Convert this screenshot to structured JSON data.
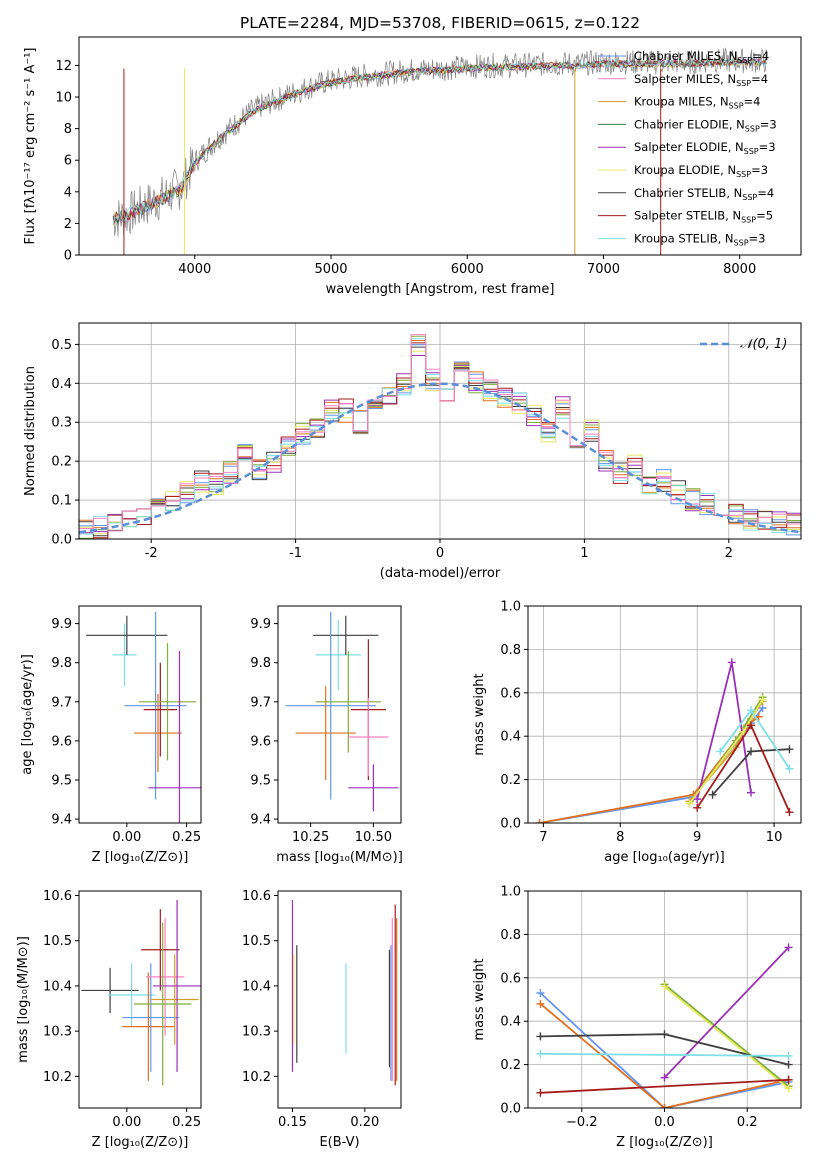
{
  "chart_data": [
    {
      "type": "line",
      "title": "PLATE=2284, MJD=53708, FIBERID=0615, z=0.122",
      "xlabel": "wavelength [Angstrom, rest frame]",
      "ylabel": "Flux [fλ10⁻¹⁷ erg cm⁻² s⁻¹ A⁻¹]",
      "xlim": [
        3150,
        8450
      ],
      "ylim": [
        0,
        13.8
      ],
      "xticks": [
        4000,
        5000,
        6000,
        7000,
        8000
      ],
      "yticks": [
        0,
        2,
        4,
        6,
        8,
        10,
        12
      ],
      "legend_position": "upper-right",
      "observed": {
        "color": "#808080",
        "x": [
          3400,
          3500,
          3600,
          3700,
          3800,
          3900,
          4000,
          4100,
          4200,
          4300,
          4400,
          4500,
          4600,
          4700,
          4800,
          4900,
          5000,
          5200,
          5400,
          5600,
          5800,
          6000,
          6200,
          6400,
          6600,
          6800,
          7000,
          7200,
          7400,
          7600,
          7800,
          8000,
          8200
        ],
        "y": [
          2.3,
          2.5,
          3.0,
          3.4,
          3.8,
          4.3,
          5.9,
          6.8,
          7.6,
          8.3,
          9.0,
          9.5,
          9.8,
          10.2,
          10.5,
          10.8,
          11.0,
          11.3,
          11.5,
          11.7,
          11.8,
          11.9,
          12.0,
          12.0,
          12.1,
          12.1,
          12.2,
          12.2,
          12.2,
          12.2,
          12.3,
          12.3,
          12.3
        ]
      },
      "series": [
        {
          "name": "Chabrier MILES, N_SSP=4",
          "color": "#6495ed"
        },
        {
          "name": "Salpeter MILES, N_SSP=4",
          "color": "#ff80c0"
        },
        {
          "name": "Kroupa MILES, N_SSP=4",
          "color": "#d2a02a"
        },
        {
          "name": "Chabrier ELODIE, N_SSP=3",
          "color": "#3a7d44"
        },
        {
          "name": "Salpeter ELODIE, N_SSP=3",
          "color": "#9b30b8"
        },
        {
          "name": "Kroupa ELODIE, N_SSP=3",
          "color": "#e8e860"
        },
        {
          "name": "Chabrier STELIB, N_SSP=4",
          "color": "#404040"
        },
        {
          "name": "Salpeter STELIB, N_SSP=5",
          "color": "#a51c1c"
        },
        {
          "name": "Kroupa STELIB, N_SSP=3",
          "color": "#80dfe6"
        }
      ],
      "model_x": [
        3400,
        3500,
        3600,
        3700,
        3800,
        3900,
        4000,
        4100,
        4200,
        4300,
        4400,
        4500,
        4600,
        4700,
        4800,
        4900,
        5000,
        5200,
        5400,
        5600,
        5800,
        6000,
        6200,
        6400,
        6600,
        6800,
        7000,
        7200,
        7400,
        7600,
        7800,
        8000,
        8200
      ],
      "model_y": [
        2.3,
        2.5,
        2.9,
        3.3,
        3.7,
        4.2,
        5.8,
        6.7,
        7.5,
        8.2,
        8.9,
        9.4,
        9.7,
        10.1,
        10.4,
        10.7,
        10.9,
        11.2,
        11.4,
        11.6,
        11.7,
        11.8,
        11.9,
        11.9,
        12.0,
        12.0,
        12.1,
        12.1,
        12.1,
        12.1,
        12.2,
        12.2,
        12.2
      ]
    },
    {
      "type": "line",
      "xlabel": "(data-model)/error",
      "ylabel": "Normed distribution",
      "xlim": [
        -2.5,
        2.5
      ],
      "ylim": [
        0,
        0.555
      ],
      "xticks": [
        -2,
        -1,
        0,
        1,
        2
      ],
      "yticks": [
        0.0,
        0.1,
        0.2,
        0.3,
        0.4,
        0.5
      ],
      "grid": true,
      "legend": "N(0,1)",
      "legend_position": "top-right",
      "hist_x": [
        -2.5,
        -2.4,
        -2.3,
        -2.2,
        -2.1,
        -2.0,
        -1.9,
        -1.8,
        -1.7,
        -1.6,
        -1.5,
        -1.4,
        -1.3,
        -1.2,
        -1.1,
        -1.0,
        -0.9,
        -0.8,
        -0.7,
        -0.6,
        -0.5,
        -0.4,
        -0.3,
        -0.2,
        -0.1,
        0.0,
        0.1,
        0.2,
        0.3,
        0.4,
        0.5,
        0.6,
        0.7,
        0.8,
        0.9,
        1.0,
        1.1,
        1.2,
        1.3,
        1.4,
        1.5,
        1.6,
        1.7,
        1.8,
        1.9,
        2.0,
        2.1,
        2.2,
        2.3,
        2.4
      ],
      "hist_y": [
        0.02,
        0.03,
        0.04,
        0.05,
        0.06,
        0.08,
        0.1,
        0.12,
        0.15,
        0.14,
        0.17,
        0.22,
        0.18,
        0.2,
        0.24,
        0.27,
        0.29,
        0.33,
        0.33,
        0.3,
        0.36,
        0.37,
        0.4,
        0.5,
        0.41,
        0.38,
        0.43,
        0.4,
        0.38,
        0.36,
        0.35,
        0.32,
        0.27,
        0.34,
        0.23,
        0.28,
        0.2,
        0.17,
        0.19,
        0.13,
        0.15,
        0.12,
        0.1,
        0.09,
        0.07,
        0.06,
        0.05,
        0.05,
        0.04,
        0.04
      ]
    },
    {
      "type": "scatter",
      "xlabel": "Z [log₁₀(Z/Z⊙)]",
      "ylabel": "age  [log₁₀(age/yr)]",
      "xlim": [
        -0.2,
        0.31
      ],
      "ylim": [
        9.39,
        9.945
      ],
      "xticks": [
        0.0,
        0.25
      ],
      "xticklabels": [
        "0.00",
        "0.25"
      ],
      "yticks": [
        9.4,
        9.5,
        9.6,
        9.7,
        9.8,
        9.9
      ],
      "error_crosses": [
        {
          "x": -0.01,
          "y": 9.82,
          "xerr": 0.05,
          "yerr": 0.08,
          "color": "#80dfe6"
        },
        {
          "x": 0.0,
          "y": 9.87,
          "xerr": 0.17,
          "yerr": 0.05,
          "color": "#404040"
        },
        {
          "x": 0.12,
          "y": 9.69,
          "xerr": 0.13,
          "yerr": 0.24,
          "color": "#6495ed"
        },
        {
          "x": 0.13,
          "y": 9.62,
          "xerr": 0.1,
          "yerr": 0.1,
          "color": "#e07020"
        },
        {
          "x": 0.14,
          "y": 9.68,
          "xerr": 0.07,
          "yerr": 0.12,
          "color": "#a51c1c"
        },
        {
          "x": 0.17,
          "y": 9.7,
          "xerr": 0.12,
          "yerr": 0.15,
          "color": "#7fae3a"
        },
        {
          "x": 0.22,
          "y": 9.48,
          "xerr": 0.13,
          "yerr": 0.35,
          "color": "#9b30b8"
        }
      ]
    },
    {
      "type": "scatter",
      "xlabel": "mass [log₁₀(M/M⊙)]",
      "xlim": [
        10.12,
        10.61
      ],
      "ylim": [
        9.39,
        9.945
      ],
      "xticks": [
        10.25,
        10.5
      ],
      "xticklabels": [
        "10.25",
        "10.50"
      ],
      "yticks": [
        9.4,
        9.5,
        9.6,
        9.7,
        9.8,
        9.9
      ],
      "error_crosses": [
        {
          "x": 10.36,
          "y": 9.82,
          "xerr": 0.09,
          "yerr": 0.09,
          "color": "#80dfe6"
        },
        {
          "x": 10.39,
          "y": 9.87,
          "xerr": 0.13,
          "yerr": 0.05,
          "color": "#404040"
        },
        {
          "x": 10.33,
          "y": 9.69,
          "xerr": 0.18,
          "yerr": 0.24,
          "color": "#6495ed"
        },
        {
          "x": 10.31,
          "y": 9.62,
          "xerr": 0.12,
          "yerr": 0.12,
          "color": "#e07020"
        },
        {
          "x": 10.48,
          "y": 9.68,
          "xerr": 0.07,
          "yerr": 0.18,
          "color": "#a51c1c"
        },
        {
          "x": 10.4,
          "y": 9.7,
          "xerr": 0.13,
          "yerr": 0.13,
          "color": "#7fae3a"
        },
        {
          "x": 10.48,
          "y": 9.61,
          "xerr": 0.08,
          "yerr": 0.1,
          "color": "#ff80c0"
        },
        {
          "x": 10.5,
          "y": 9.48,
          "xerr": 0.1,
          "yerr": 0.06,
          "color": "#9b30b8"
        }
      ]
    },
    {
      "type": "line",
      "xlabel": "age  [log₁₀(age/yr)]",
      "ylabel": "mass weight",
      "xlim": [
        6.8,
        10.35
      ],
      "ylim": [
        0,
        1.0
      ],
      "xticks": [
        7,
        8,
        9,
        10
      ],
      "yticks": [
        0.0,
        0.2,
        0.4,
        0.6,
        0.8,
        1.0
      ],
      "grid": true,
      "series": [
        {
          "color": "#6495ed",
          "x": [
            6.95,
            8.95,
            9.7,
            9.85
          ],
          "y": [
            0.0,
            0.12,
            0.46,
            0.53
          ]
        },
        {
          "color": "#e07020",
          "x": [
            6.95,
            8.95,
            9.65,
            9.8
          ],
          "y": [
            0.0,
            0.13,
            0.45,
            0.49
          ]
        },
        {
          "color": "#d2a02a",
          "x": [
            8.9,
            9.5,
            9.7,
            9.85
          ],
          "y": [
            0.1,
            0.35,
            0.48,
            0.56
          ]
        },
        {
          "color": "#7fae3a",
          "x": [
            8.9,
            9.5,
            9.85
          ],
          "y": [
            0.09,
            0.38,
            0.58
          ]
        },
        {
          "color": "#9b30b8",
          "x": [
            9.0,
            9.45,
            9.7
          ],
          "y": [
            0.11,
            0.74,
            0.14
          ]
        },
        {
          "color": "#e8e860",
          "x": [
            8.9,
            9.6,
            9.85
          ],
          "y": [
            0.09,
            0.42,
            0.57
          ]
        },
        {
          "color": "#404040",
          "x": [
            9.2,
            9.7,
            10.2
          ],
          "y": [
            0.13,
            0.33,
            0.34
          ]
        },
        {
          "color": "#a51c1c",
          "x": [
            9.0,
            9.7,
            10.2
          ],
          "y": [
            0.07,
            0.45,
            0.05
          ]
        },
        {
          "color": "#80dfe6",
          "x": [
            9.3,
            9.7,
            10.2
          ],
          "y": [
            0.33,
            0.52,
            0.25
          ]
        }
      ]
    },
    {
      "type": "scatter",
      "xlabel": "Z [log₁₀(Z/Z⊙)]",
      "ylabel": "mass [log₁₀(M/M⊙)]",
      "xlim": [
        -0.2,
        0.31
      ],
      "ylim": [
        10.13,
        10.61
      ],
      "xticks": [
        0.0,
        0.25
      ],
      "xticklabels": [
        "0.00",
        "0.25"
      ],
      "yticks": [
        10.2,
        10.3,
        10.4,
        10.5,
        10.6
      ],
      "error_crosses": [
        {
          "x": -0.07,
          "y": 10.39,
          "xerr": 0.12,
          "yerr": 0.05,
          "color": "#404040"
        },
        {
          "x": 0.02,
          "y": 10.38,
          "xerr": 0.1,
          "yerr": 0.07,
          "color": "#80dfe6"
        },
        {
          "x": 0.1,
          "y": 10.33,
          "xerr": 0.12,
          "yerr": 0.12,
          "color": "#6495ed"
        },
        {
          "x": 0.09,
          "y": 10.31,
          "xerr": 0.11,
          "yerr": 0.12,
          "color": "#e07020"
        },
        {
          "x": 0.16,
          "y": 10.42,
          "xerr": 0.08,
          "yerr": 0.13,
          "color": "#ff80c0"
        },
        {
          "x": 0.14,
          "y": 10.48,
          "xerr": 0.08,
          "yerr": 0.09,
          "color": "#a51c1c"
        },
        {
          "x": 0.2,
          "y": 10.37,
          "xerr": 0.1,
          "yerr": 0.1,
          "color": "#d2a02a"
        },
        {
          "x": 0.21,
          "y": 10.4,
          "xerr": 0.1,
          "yerr": 0.19,
          "color": "#9b30b8"
        },
        {
          "x": 0.15,
          "y": 10.36,
          "xerr": 0.12,
          "yerr": 0.18,
          "color": "#7fae3a"
        }
      ]
    },
    {
      "type": "scatter",
      "xlabel": "E(B-V)",
      "xlim": [
        0.14,
        0.225
      ],
      "ylim": [
        10.13,
        10.61
      ],
      "xticks": [
        0.15,
        0.2
      ],
      "xticklabels": [
        "0.15",
        "0.20"
      ],
      "yticks": [
        10.2,
        10.3,
        10.4,
        10.5,
        10.6
      ],
      "error_bars": [
        {
          "x": 0.15,
          "y": 10.4,
          "yerr": 0.19,
          "color": "#9b30b8"
        },
        {
          "x": 0.151,
          "y": 10.37,
          "yerr": 0.1,
          "color": "#e8e860"
        },
        {
          "x": 0.153,
          "y": 10.36,
          "yerr": 0.13,
          "color": "#404040"
        },
        {
          "x": 0.187,
          "y": 10.35,
          "yerr": 0.1,
          "color": "#80dfe6"
        },
        {
          "x": 0.217,
          "y": 10.35,
          "yerr": 0.13,
          "color": "#404040"
        },
        {
          "x": 0.218,
          "y": 10.34,
          "yerr": 0.15,
          "color": "#6495ed"
        },
        {
          "x": 0.219,
          "y": 10.37,
          "yerr": 0.18,
          "color": "#ff80c0"
        },
        {
          "x": 0.221,
          "y": 10.38,
          "yerr": 0.2,
          "color": "#a51c1c"
        },
        {
          "x": 0.222,
          "y": 10.37,
          "yerr": 0.18,
          "color": "#e07020"
        }
      ]
    },
    {
      "type": "line",
      "xlabel": "Z [log₁₀(Z/Z⊙)]",
      "ylabel": "mass weight",
      "xlim": [
        -0.33,
        0.33
      ],
      "ylim": [
        0,
        1.0
      ],
      "xticks": [
        -0.2,
        0.0,
        0.2
      ],
      "xticklabels": [
        "−0.2",
        "0.0",
        "0.2"
      ],
      "yticks": [
        0.0,
        0.2,
        0.4,
        0.6,
        0.8,
        1.0
      ],
      "grid": true,
      "series": [
        {
          "color": "#6495ed",
          "x": [
            -0.3,
            0.0,
            0.3
          ],
          "y": [
            0.53,
            0.0,
            0.12
          ]
        },
        {
          "color": "#e07020",
          "x": [
            -0.3,
            0.0,
            0.3
          ],
          "y": [
            0.48,
            0.0,
            0.13
          ]
        },
        {
          "color": "#7fae3a",
          "x": [
            0.0,
            0.3
          ],
          "y": [
            0.57,
            0.1
          ]
        },
        {
          "color": "#e8e860",
          "x": [
            0.0,
            0.3
          ],
          "y": [
            0.56,
            0.09
          ]
        },
        {
          "color": "#9b30b8",
          "x": [
            0.0,
            0.3
          ],
          "y": [
            0.14,
            0.74
          ]
        },
        {
          "color": "#404040",
          "x": [
            -0.3,
            0.0,
            0.3
          ],
          "y": [
            0.33,
            0.34,
            0.2
          ]
        },
        {
          "color": "#a51c1c",
          "x": [
            -0.3,
            0.3
          ],
          "y": [
            0.07,
            0.13
          ]
        },
        {
          "color": "#80dfe6",
          "x": [
            -0.3,
            0.3
          ],
          "y": [
            0.25,
            0.24
          ]
        }
      ]
    }
  ]
}
